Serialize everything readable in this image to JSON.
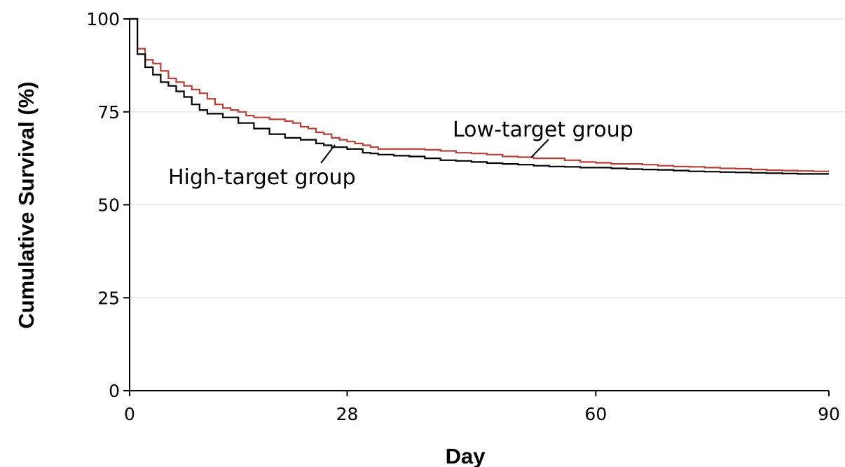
{
  "chart_data": {
    "type": "line",
    "xlabel": "Day",
    "ylabel": "Cumulative Survival (%)",
    "xlim": [
      0,
      90
    ],
    "ylim": [
      0,
      100
    ],
    "xticks": [
      0,
      28,
      60,
      90
    ],
    "yticks": [
      0,
      25,
      50,
      75,
      100
    ],
    "grid": "horizontal",
    "annotations": [
      "Low-target group",
      "High-target group"
    ],
    "series": [
      {
        "name": "Low-target group",
        "color": "#b5403a",
        "x": [
          0,
          1,
          1,
          2,
          3,
          4,
          5,
          6,
          7,
          8,
          9,
          10,
          11,
          12,
          13,
          14,
          15,
          16,
          18,
          20,
          21,
          22,
          23,
          24,
          25,
          26,
          27,
          28,
          29,
          30,
          31,
          32,
          34,
          36,
          38,
          40,
          42,
          44,
          46,
          48,
          50,
          52,
          54,
          56,
          58,
          60,
          62,
          64,
          66,
          68,
          70,
          72,
          74,
          76,
          78,
          80,
          82,
          84,
          86,
          88,
          90
        ],
        "y": [
          100,
          100,
          92,
          89,
          88,
          86,
          84,
          83,
          82,
          81,
          80,
          78.5,
          77,
          76,
          75.5,
          75,
          74,
          73.5,
          73,
          72.5,
          72,
          71,
          70.5,
          69.5,
          69,
          68,
          67.5,
          67,
          66.5,
          66,
          65.5,
          65,
          65,
          65,
          64.8,
          64.5,
          64,
          63.8,
          63.5,
          63,
          62.8,
          62.5,
          62.5,
          62,
          61.5,
          61.3,
          61,
          61,
          60.8,
          60.5,
          60.3,
          60.2,
          60,
          59.8,
          59.7,
          59.5,
          59.3,
          59.2,
          59.1,
          59,
          59
        ]
      },
      {
        "name": "High-target group",
        "color": "#000000",
        "x": [
          0,
          1,
          1,
          2,
          3,
          4,
          5,
          6,
          7,
          8,
          9,
          10,
          12,
          14,
          16,
          18,
          20,
          22,
          24,
          25,
          26,
          28,
          30,
          31,
          32,
          34,
          36,
          38,
          40,
          42,
          44,
          46,
          48,
          50,
          52,
          54,
          56,
          58,
          60,
          62,
          64,
          66,
          68,
          70,
          72,
          74,
          76,
          78,
          80,
          82,
          84,
          86,
          88,
          90
        ],
        "y": [
          100,
          100,
          90.5,
          87,
          85,
          83,
          82,
          80.5,
          79,
          77,
          75.5,
          74.5,
          73.5,
          72,
          70.5,
          69,
          68,
          67.5,
          66.5,
          66,
          65.5,
          65,
          64,
          63.8,
          63.5,
          63.2,
          63,
          62.5,
          62,
          61.8,
          61.5,
          61.2,
          61,
          60.8,
          60.5,
          60.3,
          60.2,
          60,
          60,
          59.8,
          59.6,
          59.5,
          59.4,
          59.2,
          59,
          58.9,
          58.8,
          58.7,
          58.6,
          58.5,
          58.4,
          58.3,
          58.3,
          58.3
        ]
      }
    ]
  }
}
